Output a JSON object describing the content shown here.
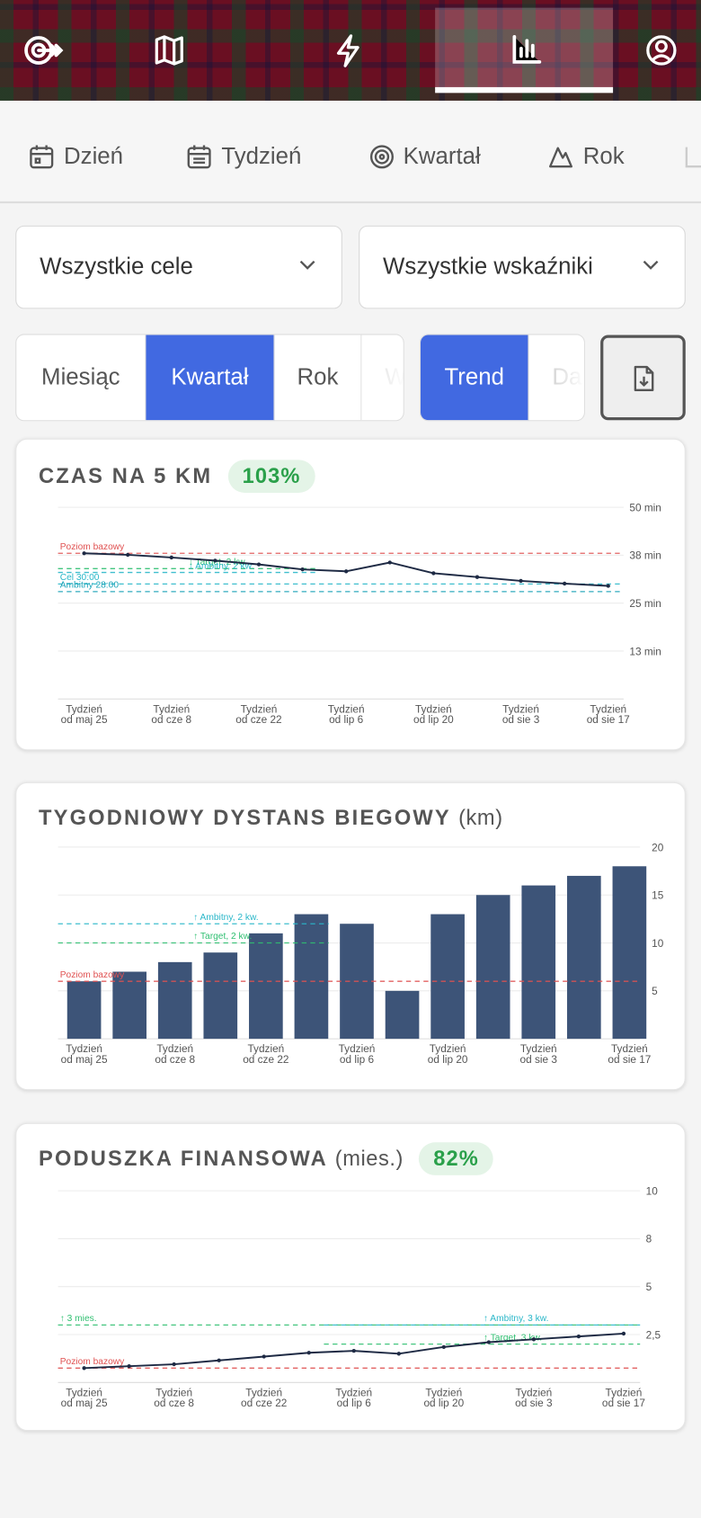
{
  "period_tabs": [
    "Dzień",
    "Tydzień",
    "Kwartał",
    "Rok"
  ],
  "filters": [
    "Wszystkie cele",
    "Wszystkie wskaźniki"
  ],
  "range_options": [
    "Miesiąc",
    "Kwartał",
    "Rok",
    "W"
  ],
  "view_options": [
    "Trend",
    "Da"
  ],
  "chart_data": [
    {
      "type": "line",
      "title": "CZAS NA 5 KM",
      "badge": "103%",
      "categories": [
        "Tydzień\nod maj 25",
        null,
        "Tydzień\nod cze 8",
        null,
        "Tydzień\nod cze 22",
        null,
        "Tydzień\nod lip 6",
        null,
        "Tydzień\nod lip 20",
        null,
        "Tydzień\nod sie 3",
        null,
        "Tydzień\nod sie 17"
      ],
      "values": [
        38,
        37.6,
        36.9,
        36.1,
        35.1,
        33.8,
        33.3,
        35.6,
        32.8,
        31.8,
        30.8,
        30.1,
        29.5
      ],
      "color": "#1e2a44",
      "ylim": [
        0,
        50
      ],
      "yticks": [
        {
          "value": 12.5,
          "label": "13 min"
        },
        {
          "value": 25,
          "label": "25 min"
        },
        {
          "value": 37.5,
          "label": "38 min"
        },
        {
          "value": 50,
          "label": "50 min"
        }
      ],
      "grid": true,
      "annotations": [
        {
          "label": "Poziom bazowy",
          "value": 38,
          "color": "#e05252"
        },
        {
          "label": "↓ Target, 2 kw.",
          "value": 34,
          "color": "#2fbf71"
        },
        {
          "label": "↓ Ambitny, 2 kw.",
          "value": 33,
          "color": "#2ab7c9"
        },
        {
          "label": "Cel 30:00",
          "value": 30,
          "color": "#2ab7c9"
        },
        {
          "label": "Ambitny 28:00",
          "value": 28,
          "color": "#1aa3b8"
        }
      ]
    },
    {
      "type": "bar",
      "title": "TYGODNIOWY DYSTANS BIEGOWY",
      "unit": "(km)",
      "categories": [
        "Tydzień\nod maj 25",
        null,
        "Tydzień\nod cze 8",
        null,
        "Tydzień\nod cze 22",
        null,
        "Tydzień\nod lip 6",
        null,
        "Tydzień\nod lip 20",
        null,
        "Tydzień\nod sie 3",
        null,
        "Tydzień\nod sie 17"
      ],
      "values": [
        6,
        7,
        8,
        9,
        11,
        13,
        12,
        5,
        13,
        15,
        16,
        17,
        18
      ],
      "color": "#3d5478",
      "ylim": [
        0,
        20
      ],
      "yticks": [
        5,
        10,
        15,
        20
      ],
      "grid": true,
      "annotations": [
        {
          "label": "Poziom bazowy",
          "value": 6,
          "color": "#e05252"
        },
        {
          "label": "↑ Target, 2 kw.",
          "value": 10,
          "color": "#2fbf71"
        },
        {
          "label": "↑ Ambitny, 2 kw.",
          "value": 12,
          "color": "#2ab7c9"
        }
      ]
    },
    {
      "type": "line",
      "title": "PODUSZKA FINANSOWA",
      "unit": "(mies.)",
      "badge": "82%",
      "categories": [
        "Tydzień\nod maj 25",
        null,
        "Tydzień\nod cze 8",
        null,
        "Tydzień\nod cze 22",
        null,
        "Tydzień\nod lip 6",
        null,
        "Tydzień\nod lip 20",
        null,
        "Tydzień\nod sie 3",
        null,
        "Tydzień\nod sie 17"
      ],
      "values": [
        0.75,
        0.85,
        0.95,
        1.15,
        1.35,
        1.55,
        1.65,
        1.5,
        1.85,
        2.1,
        2.25,
        2.4,
        2.55
      ],
      "color": "#1e2a44",
      "ylim": [
        0,
        10
      ],
      "yticks": [
        {
          "value": 2.5,
          "label": "2,5"
        },
        5,
        {
          "value": 7.5,
          "label": "8"
        },
        10
      ],
      "grid": true,
      "annotations": [
        {
          "label": "Poziom bazowy",
          "value": 0.75,
          "color": "#e05252"
        },
        {
          "label": "↑ 3 mies.",
          "value": 3,
          "color": "#2fbf71"
        },
        {
          "label": "↑ Ambitny, 3 kw.",
          "value": 3,
          "color": "#2ab7c9"
        },
        {
          "label": "↑ Target, 3 kw.",
          "value": 2,
          "color": "#2fbf71"
        }
      ]
    }
  ]
}
